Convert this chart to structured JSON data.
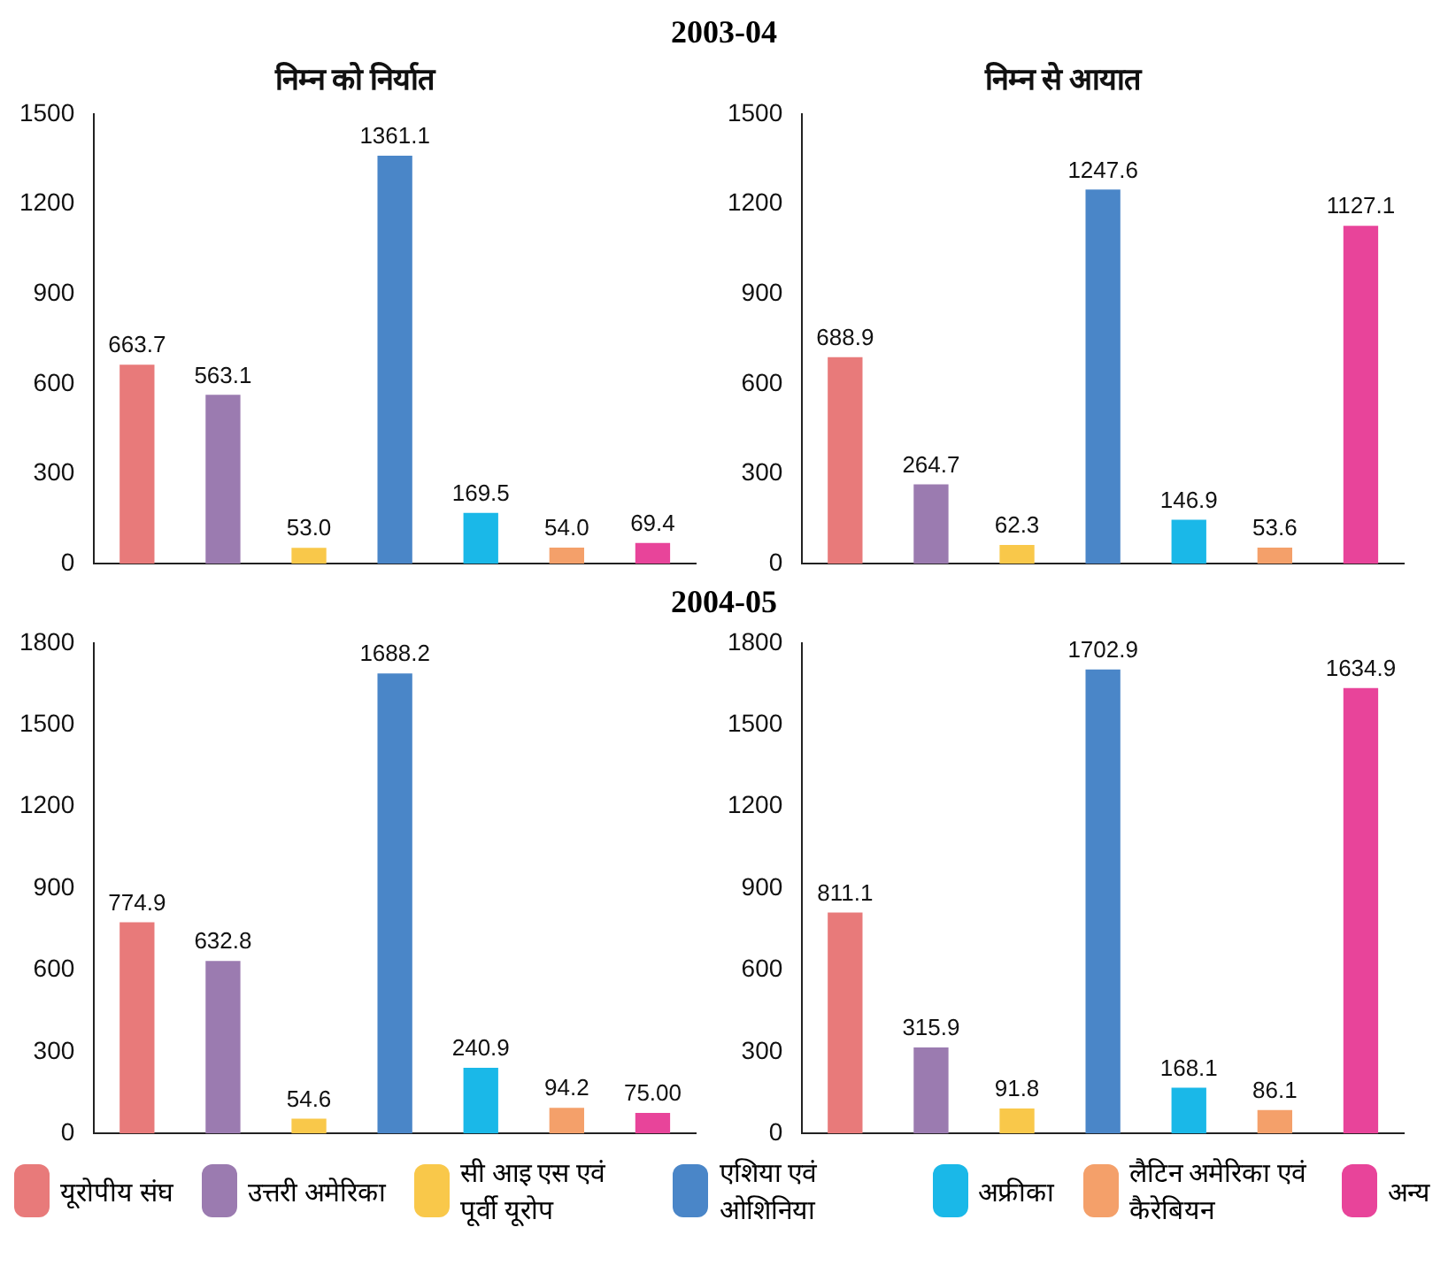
{
  "chart_data": [
    {
      "type": "bar",
      "title": "निम्न को निर्यात",
      "annotations": [
        "2003-04"
      ],
      "categories": [
        null,
        null,
        null,
        null,
        null,
        null,
        null
      ],
      "series": [
        {
          "name": "यूरोपीय संघ",
          "color": "#e87a7a",
          "values": [
            663.7,
            null,
            null,
            null,
            null,
            null,
            null
          ],
          "value_labels": [
            "663.7",
            null,
            null,
            null,
            null,
            null,
            null
          ]
        },
        {
          "name": "उत्तरी अमेरिका",
          "color": "#9b7bb0",
          "values": [
            null,
            563.1,
            null,
            null,
            null,
            null,
            null
          ],
          "value_labels": [
            null,
            "563.1",
            null,
            null,
            null,
            null,
            null
          ]
        },
        {
          "name": "सी आइ एस एवं पूर्वी यूरोप",
          "color": "#f9c84a",
          "values": [
            null,
            null,
            53.0,
            null,
            null,
            null,
            null
          ],
          "value_labels": [
            null,
            null,
            "53.0",
            null,
            null,
            null,
            null
          ]
        },
        {
          "name": "एशिया एवं ओशिनिया",
          "color": "#4a86c8",
          "values": [
            null,
            null,
            null,
            1361.1,
            null,
            null,
            null
          ],
          "value_labels": [
            null,
            null,
            null,
            "1361.1",
            null,
            null,
            null
          ]
        },
        {
          "name": "अफ्रीका",
          "color": "#1ab8e8",
          "values": [
            null,
            null,
            null,
            null,
            169.5,
            null,
            null
          ],
          "value_labels": [
            null,
            null,
            null,
            null,
            "169.5",
            null,
            null
          ]
        },
        {
          "name": "लैटिन अमेरिका एवं कैरेबियन",
          "color": "#f4a06a",
          "values": [
            null,
            null,
            null,
            null,
            null,
            54.0,
            null
          ],
          "value_labels": [
            null,
            null,
            null,
            null,
            null,
            "54.0",
            null
          ]
        },
        {
          "name": "अन्य",
          "color": "#e8449a",
          "values": [
            null,
            null,
            null,
            null,
            null,
            null,
            69.4
          ],
          "value_labels": [
            null,
            null,
            null,
            null,
            null,
            null,
            "69.4"
          ]
        }
      ],
      "ylim": [
        0,
        1500
      ],
      "yticks": [
        0,
        300,
        600,
        900,
        1200,
        1500
      ],
      "tick_labels": "y",
      "grid": false,
      "legend": "bottom"
    },
    {
      "type": "bar",
      "title": "निम्न से आयात",
      "categories": [
        null,
        null,
        null,
        null,
        null,
        null,
        null
      ],
      "series": [
        {
          "color": "#e87a7a",
          "values": [
            688.9,
            null,
            null,
            null,
            null,
            null,
            null
          ],
          "value_labels": [
            "688.9",
            null,
            null,
            null,
            null,
            null,
            null
          ]
        },
        {
          "color": "#9b7bb0",
          "values": [
            null,
            264.7,
            null,
            null,
            null,
            null,
            null
          ],
          "value_labels": [
            null,
            "264.7",
            null,
            null,
            null,
            null,
            null
          ]
        },
        {
          "color": "#f9c84a",
          "values": [
            null,
            null,
            62.3,
            null,
            null,
            null,
            null
          ],
          "value_labels": [
            null,
            null,
            "62.3",
            null,
            null,
            null,
            null
          ]
        },
        {
          "color": "#4a86c8",
          "values": [
            null,
            null,
            null,
            1247.6,
            null,
            null,
            null
          ],
          "value_labels": [
            null,
            null,
            null,
            "1247.6",
            null,
            null,
            null
          ]
        },
        {
          "color": "#1ab8e8",
          "values": [
            null,
            null,
            null,
            null,
            146.9,
            null,
            null
          ],
          "value_labels": [
            null,
            null,
            null,
            null,
            "146.9",
            null,
            null
          ]
        },
        {
          "color": "#f4a06a",
          "values": [
            null,
            null,
            null,
            null,
            null,
            53.6,
            null
          ],
          "value_labels": [
            null,
            null,
            null,
            null,
            null,
            "53.6",
            null
          ]
        },
        {
          "color": "#e8449a",
          "values": [
            null,
            null,
            null,
            null,
            null,
            null,
            1127.1
          ],
          "value_labels": [
            null,
            null,
            null,
            null,
            null,
            null,
            "1127.1"
          ]
        }
      ],
      "ylim": [
        0,
        1500
      ],
      "yticks": [
        0,
        300,
        600,
        900,
        1200,
        1500
      ],
      "tick_labels": "y",
      "grid": false
    },
    {
      "type": "bar",
      "annotations": [
        "2004-05"
      ],
      "categories": [
        null,
        null,
        null,
        null,
        null,
        null,
        null
      ],
      "series": [
        {
          "color": "#e87a7a",
          "values": [
            774.9,
            null,
            null,
            null,
            null,
            null,
            null
          ],
          "value_labels": [
            "774.9",
            null,
            null,
            null,
            null,
            null,
            null
          ]
        },
        {
          "color": "#9b7bb0",
          "values": [
            null,
            632.8,
            null,
            null,
            null,
            null,
            null
          ],
          "value_labels": [
            null,
            "632.8",
            null,
            null,
            null,
            null,
            null
          ]
        },
        {
          "color": "#f9c84a",
          "values": [
            null,
            null,
            54.6,
            null,
            null,
            null,
            null
          ],
          "value_labels": [
            null,
            null,
            "54.6",
            null,
            null,
            null,
            null
          ]
        },
        {
          "color": "#4a86c8",
          "values": [
            null,
            null,
            null,
            1688.2,
            null,
            null,
            null
          ],
          "value_labels": [
            null,
            null,
            null,
            "1688.2",
            null,
            null,
            null
          ]
        },
        {
          "color": "#1ab8e8",
          "values": [
            null,
            null,
            null,
            null,
            240.9,
            null,
            null
          ],
          "value_labels": [
            null,
            null,
            null,
            null,
            "240.9",
            null,
            null
          ]
        },
        {
          "color": "#f4a06a",
          "values": [
            null,
            null,
            null,
            null,
            null,
            94.2,
            null
          ],
          "value_labels": [
            null,
            null,
            null,
            null,
            null,
            "94.2",
            null
          ]
        },
        {
          "color": "#e8449a",
          "values": [
            null,
            null,
            null,
            null,
            null,
            null,
            75.0
          ],
          "value_labels": [
            null,
            null,
            null,
            null,
            null,
            null,
            "75.00"
          ]
        }
      ],
      "ylim": [
        0,
        1800
      ],
      "yticks": [
        0,
        300,
        600,
        900,
        1200,
        1500,
        1800
      ],
      "tick_labels": "y",
      "grid": false
    },
    {
      "type": "bar",
      "categories": [
        null,
        null,
        null,
        null,
        null,
        null,
        null
      ],
      "series": [
        {
          "color": "#e87a7a",
          "values": [
            811.1,
            null,
            null,
            null,
            null,
            null,
            null
          ],
          "value_labels": [
            "811.1",
            null,
            null,
            null,
            null,
            null,
            null
          ]
        },
        {
          "color": "#9b7bb0",
          "values": [
            null,
            315.9,
            null,
            null,
            null,
            null,
            null
          ],
          "value_labels": [
            null,
            "315.9",
            null,
            null,
            null,
            null,
            null
          ]
        },
        {
          "color": "#f9c84a",
          "values": [
            null,
            null,
            91.8,
            null,
            null,
            null,
            null
          ],
          "value_labels": [
            null,
            null,
            "91.8",
            null,
            null,
            null,
            null
          ]
        },
        {
          "color": "#4a86c8",
          "values": [
            null,
            null,
            null,
            1702.9,
            null,
            null,
            null
          ],
          "value_labels": [
            null,
            null,
            null,
            "1702.9",
            null,
            null,
            null
          ]
        },
        {
          "color": "#1ab8e8",
          "values": [
            null,
            null,
            null,
            null,
            168.1,
            null,
            null
          ],
          "value_labels": [
            null,
            null,
            null,
            null,
            "168.1",
            null,
            null
          ]
        },
        {
          "color": "#f4a06a",
          "values": [
            null,
            null,
            null,
            null,
            null,
            86.1,
            null
          ],
          "value_labels": [
            null,
            null,
            null,
            null,
            null,
            "86.1",
            null
          ]
        },
        {
          "color": "#e8449a",
          "values": [
            null,
            null,
            null,
            null,
            null,
            null,
            1634.9
          ],
          "value_labels": [
            null,
            null,
            null,
            null,
            null,
            null,
            "1634.9"
          ]
        }
      ],
      "ylim": [
        0,
        1800
      ],
      "yticks": [
        0,
        300,
        600,
        900,
        1200,
        1500,
        1800
      ],
      "tick_labels": "y",
      "grid": false
    }
  ]
}
